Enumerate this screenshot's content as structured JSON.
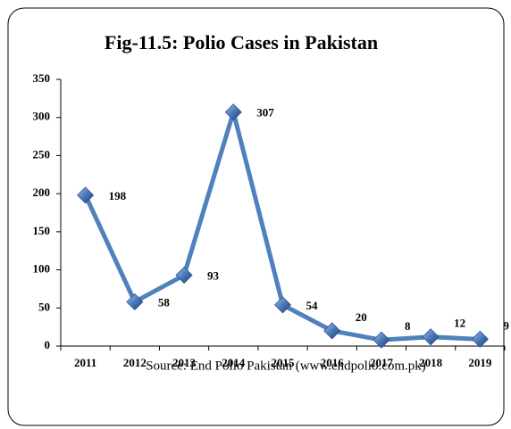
{
  "chart_data": {
    "type": "line",
    "title": "Fig-11.5: Polio Cases in Pakistan",
    "source": "Source: End Polio Pakistan (www.endpolio.com.pk)",
    "categories": [
      "2011",
      "2012",
      "2013",
      "2014",
      "2015",
      "2016",
      "2017",
      "2018",
      "2019"
    ],
    "values": [
      198,
      58,
      93,
      307,
      54,
      20,
      8,
      12,
      9
    ],
    "color": "#4f81bd",
    "ylim": [
      0,
      350
    ],
    "yticks": [
      0,
      50,
      100,
      150,
      200,
      250,
      300,
      350
    ],
    "grid": false
  }
}
